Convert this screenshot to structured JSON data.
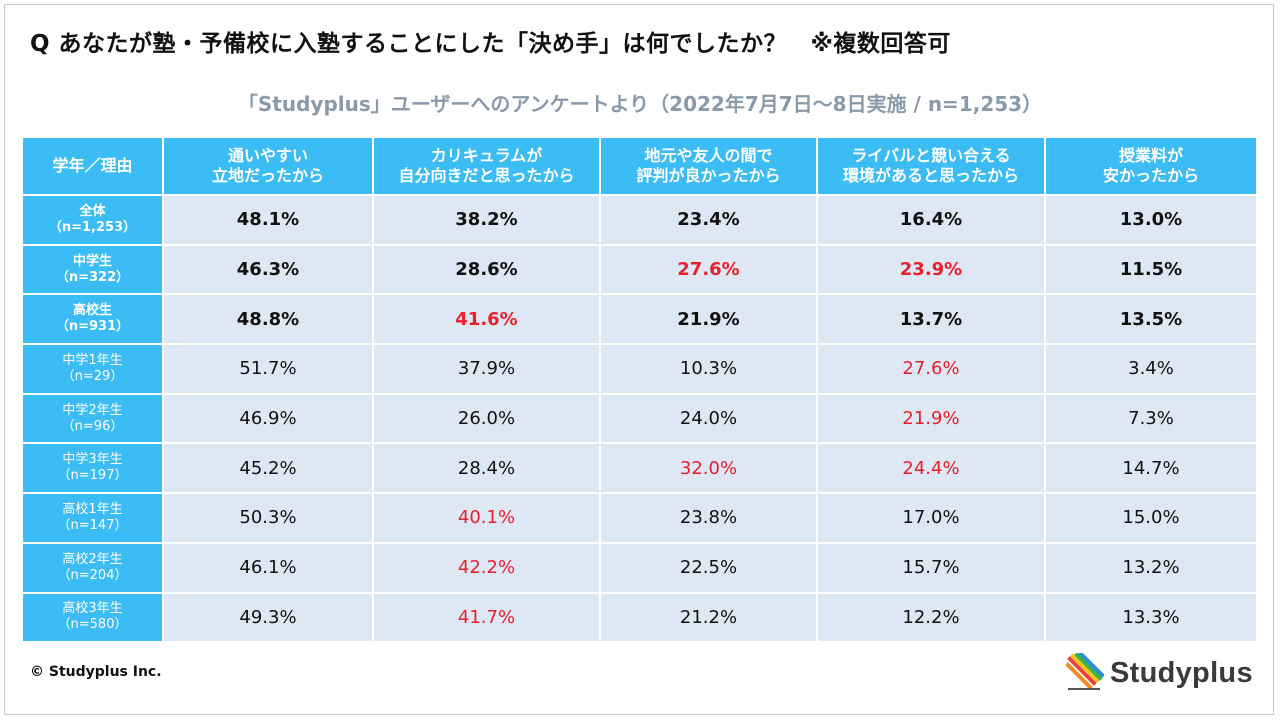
{
  "title": "Q あなたが塾・予備校に入塾することにした「決め手」は何でしたか？　※複数回答可",
  "subtitle": "「Studyplus」ユーザーへのアンケートより（2022年7月7日～8日実施 / n=1,253）",
  "copyright": "© Studyplus Inc.",
  "logo_text": "Studyplus",
  "colors": {
    "header_bg": "#3bbcf5",
    "cell_bg": "#dde8f4",
    "highlight": "#e8202a"
  },
  "chart_data": {
    "type": "table",
    "corner_label": "学年／理由",
    "columns": [
      {
        "line1": "通いやすい",
        "line2": "立地だったから"
      },
      {
        "line1": "カリキュラムが",
        "line2": "自分向きだと思ったから"
      },
      {
        "line1": "地元や友人の間で",
        "line2": "評判が良かったから"
      },
      {
        "line1": "ライバルと競い合える",
        "line2": "環境があると思ったから"
      },
      {
        "line1": "授業料が",
        "line2": "安かったから"
      }
    ],
    "rows": [
      {
        "label": "全体",
        "n": "（n=1,253）",
        "bold": true,
        "values": [
          "48.1%",
          "38.2%",
          "23.4%",
          "16.4%",
          "13.0%"
        ],
        "highlight": [
          false,
          false,
          false,
          false,
          false
        ]
      },
      {
        "label": "中学生",
        "n": "（n=322）",
        "bold": true,
        "values": [
          "46.3%",
          "28.6%",
          "27.6%",
          "23.9%",
          "11.5%"
        ],
        "highlight": [
          false,
          false,
          true,
          true,
          false
        ]
      },
      {
        "label": "高校生",
        "n": "（n=931）",
        "bold": true,
        "values": [
          "48.8%",
          "41.6%",
          "21.9%",
          "13.7%",
          "13.5%"
        ],
        "highlight": [
          false,
          true,
          false,
          false,
          false
        ]
      },
      {
        "label": "中学1年生",
        "n": "（n=29）",
        "bold": false,
        "values": [
          "51.7%",
          "37.9%",
          "10.3%",
          "27.6%",
          "3.4%"
        ],
        "highlight": [
          false,
          false,
          false,
          true,
          false
        ]
      },
      {
        "label": "中学2年生",
        "n": "（n=96）",
        "bold": false,
        "values": [
          "46.9%",
          "26.0%",
          "24.0%",
          "21.9%",
          "7.3%"
        ],
        "highlight": [
          false,
          false,
          false,
          true,
          false
        ]
      },
      {
        "label": "中学3年生",
        "n": "（n=197）",
        "bold": false,
        "values": [
          "45.2%",
          "28.4%",
          "32.0%",
          "24.4%",
          "14.7%"
        ],
        "highlight": [
          false,
          false,
          true,
          true,
          false
        ]
      },
      {
        "label": "高校1年生",
        "n": "（n=147）",
        "bold": false,
        "values": [
          "50.3%",
          "40.1%",
          "23.8%",
          "17.0%",
          "15.0%"
        ],
        "highlight": [
          false,
          true,
          false,
          false,
          false
        ]
      },
      {
        "label": "高校2年生",
        "n": "（n=204）",
        "bold": false,
        "values": [
          "46.1%",
          "42.2%",
          "22.5%",
          "15.7%",
          "13.2%"
        ],
        "highlight": [
          false,
          true,
          false,
          false,
          false
        ]
      },
      {
        "label": "高校3年生",
        "n": "（n=580）",
        "bold": false,
        "values": [
          "49.3%",
          "41.7%",
          "21.2%",
          "12.2%",
          "13.3%"
        ],
        "highlight": [
          false,
          true,
          false,
          false,
          false
        ]
      }
    ]
  }
}
